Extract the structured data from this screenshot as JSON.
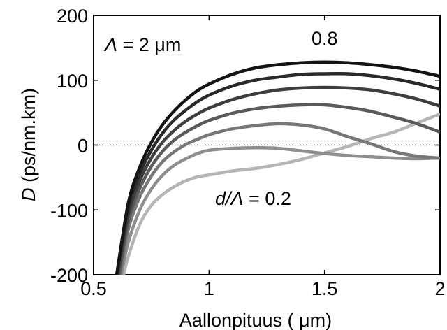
{
  "chart_data": {
    "type": "line",
    "title": "",
    "xlabel": "Aallonpituus ( μm)",
    "ylabel_italic": "D",
    "ylabel_rest": " (ps/nm.km)",
    "xlim": [
      0.5,
      2
    ],
    "ylim": [
      -200,
      200
    ],
    "xticks": [
      0.5,
      1,
      1.5,
      2
    ],
    "yticks": [
      -200,
      -100,
      0,
      100,
      200
    ],
    "xtick_labels": [
      "0.5",
      "1",
      "1.5",
      "2"
    ],
    "ytick_labels": [
      "-200",
      "-100",
      "0",
      "100",
      "200"
    ],
    "grid": false,
    "legend": "none",
    "zero_line": {
      "y": 0,
      "style": "dotted"
    },
    "annotations": {
      "pitch_symbol": "Λ",
      "pitch_rest": " = 2  μm",
      "top_label": "0.8",
      "bottom_label_d": "d",
      "bottom_label_lambda": "/Λ",
      "bottom_label_value": " = 0.2"
    },
    "series": [
      {
        "color": "#b5b5b5",
        "x": [
          0.63,
          0.65,
          0.7,
          0.75,
          0.8,
          0.85,
          0.9,
          0.95,
          1.0,
          1.1,
          1.2,
          1.3,
          1.4,
          1.5,
          1.6,
          1.7,
          1.8,
          1.9,
          2.0
        ],
        "y": [
          -200,
          -172,
          -122,
          -93,
          -76,
          -64,
          -55,
          -49,
          -46,
          -40,
          -36,
          -30,
          -22,
          -12,
          -2,
          10,
          20,
          34,
          48
        ]
      },
      {
        "color": "#8e8e8e",
        "x": [
          0.62,
          0.65,
          0.7,
          0.75,
          0.8,
          0.85,
          0.9,
          0.95,
          1.0,
          1.1,
          1.2,
          1.3,
          1.4,
          1.5,
          1.6,
          1.7,
          1.8,
          1.9,
          2.0
        ],
        "y": [
          -200,
          -150,
          -100,
          -68,
          -46,
          -31,
          -21,
          -13,
          -8,
          -5,
          -4,
          -5,
          -9,
          -13,
          -16,
          -18,
          -20,
          -21,
          -20
        ]
      },
      {
        "color": "#777777",
        "x": [
          0.615,
          0.65,
          0.7,
          0.75,
          0.8,
          0.85,
          0.9,
          0.95,
          1.0,
          1.1,
          1.2,
          1.3,
          1.4,
          1.5,
          1.6,
          1.7,
          1.8,
          1.9,
          2.0
        ],
        "y": [
          -200,
          -130,
          -80,
          -48,
          -25,
          -10,
          1,
          9,
          16,
          25,
          30,
          33,
          31,
          25,
          13,
          2,
          -10,
          -17,
          -20
        ]
      },
      {
        "color": "#5a5a5a",
        "x": [
          0.61,
          0.65,
          0.7,
          0.75,
          0.8,
          0.85,
          0.9,
          0.95,
          1.0,
          1.1,
          1.2,
          1.3,
          1.4,
          1.5,
          1.6,
          1.7,
          1.8,
          1.9,
          2.0
        ],
        "y": [
          -200,
          -118,
          -67,
          -33,
          -9,
          8,
          20,
          30,
          38,
          49,
          56,
          60,
          62,
          62,
          58,
          52,
          43,
          33,
          20
        ]
      },
      {
        "color": "#3e3e3e",
        "x": [
          0.605,
          0.65,
          0.7,
          0.75,
          0.8,
          0.85,
          0.9,
          0.95,
          1.0,
          1.1,
          1.2,
          1.3,
          1.4,
          1.5,
          1.6,
          1.7,
          1.8,
          1.9,
          2.0
        ],
        "y": [
          -200,
          -108,
          -55,
          -20,
          5,
          23,
          37,
          48,
          57,
          70,
          79,
          85,
          88,
          89,
          88,
          85,
          79,
          71,
          60
        ]
      },
      {
        "color": "#2a2a2a",
        "x": [
          0.6,
          0.65,
          0.7,
          0.75,
          0.8,
          0.85,
          0.9,
          0.95,
          1.0,
          1.1,
          1.2,
          1.3,
          1.4,
          1.5,
          1.6,
          1.7,
          1.8,
          1.9,
          2.0
        ],
        "y": [
          -200,
          -98,
          -44,
          -8,
          19,
          39,
          54,
          67,
          77,
          91,
          100,
          105,
          109,
          110,
          110,
          107,
          102,
          95,
          86
        ]
      },
      {
        "color": "#141414",
        "x": [
          0.6,
          0.65,
          0.7,
          0.75,
          0.8,
          0.85,
          0.9,
          0.95,
          1.0,
          1.1,
          1.2,
          1.3,
          1.4,
          1.5,
          1.6,
          1.7,
          1.8,
          1.9,
          2.0
        ],
        "y": [
          -200,
          -90,
          -34,
          4,
          32,
          53,
          70,
          84,
          94,
          109,
          119,
          124,
          127,
          128,
          127,
          124,
          120,
          114,
          106
        ]
      }
    ]
  }
}
